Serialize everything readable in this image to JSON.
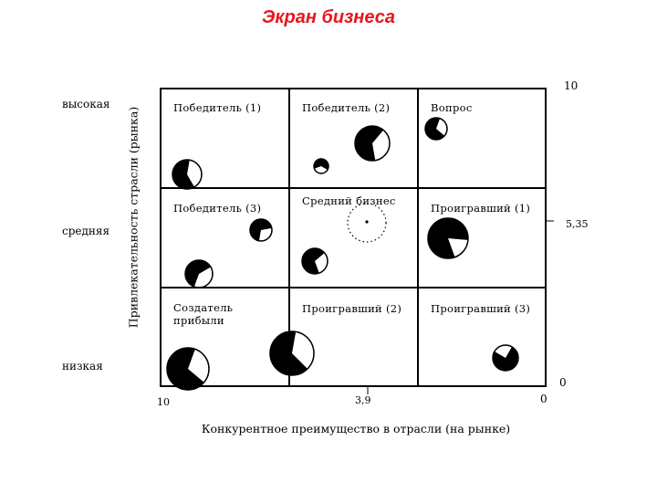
{
  "title": "Экран бизнеса",
  "y_axis": {
    "label": "Привлекательность страсли (рынка)",
    "levels": [
      "высокая",
      "средняя",
      "низкая"
    ],
    "ticks": [
      "10",
      "5,35",
      "0"
    ]
  },
  "x_axis": {
    "label": "Конкурентное преимущество в отрасли (на рынке)",
    "ticks": [
      "10",
      "3,9",
      "0"
    ]
  },
  "cells": {
    "winner_1": "Победитель (1)",
    "winner_2": "Победитель (2)",
    "question": "Вопрос",
    "winner_3": "Победитель (3)",
    "average_business": "Средний бизнес",
    "loser_1": "Проигравший (1)",
    "profit_maker_line1": "Создатель",
    "profit_maker_line2": "прибыли",
    "loser_2": "Проигравший (2)",
    "loser_3": "Проигравший (3)"
  },
  "colors": {
    "title": "#e8161d",
    "ink": "#000000",
    "paper": "#ffffff"
  }
}
